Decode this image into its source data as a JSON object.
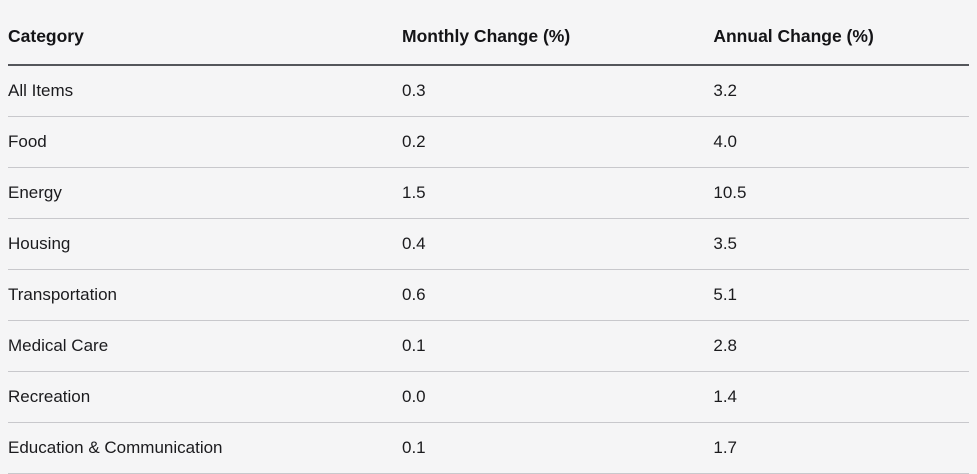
{
  "page": {
    "background_color": "#f5f5f6",
    "header_rule_color": "#54565b",
    "row_rule_color": "#c8c8cc",
    "text_color": "#1b1b1e"
  },
  "table": {
    "columns": [
      "Category",
      "Monthly Change (%)",
      "Annual Change (%)"
    ],
    "rows": [
      {
        "category": "All Items",
        "monthly": "0.3",
        "annual": "3.2"
      },
      {
        "category": "Food",
        "monthly": "0.2",
        "annual": "4.0"
      },
      {
        "category": "Energy",
        "monthly": "1.5",
        "annual": "10.5"
      },
      {
        "category": "Housing",
        "monthly": "0.4",
        "annual": "3.5"
      },
      {
        "category": "Transportation",
        "monthly": "0.6",
        "annual": "5.1"
      },
      {
        "category": "Medical Care",
        "monthly": "0.1",
        "annual": "2.8"
      },
      {
        "category": "Recreation",
        "monthly": "0.0",
        "annual": "1.4"
      },
      {
        "category": "Education & Communication",
        "monthly": "0.1",
        "annual": "1.7"
      }
    ]
  },
  "chart_data": {
    "type": "table",
    "title": "",
    "columns": [
      "Category",
      "Monthly Change (%)",
      "Annual Change (%)"
    ],
    "rows": [
      [
        "All Items",
        0.3,
        3.2
      ],
      [
        "Food",
        0.2,
        4.0
      ],
      [
        "Energy",
        1.5,
        10.5
      ],
      [
        "Housing",
        0.4,
        3.5
      ],
      [
        "Transportation",
        0.6,
        5.1
      ],
      [
        "Medical Care",
        0.1,
        2.8
      ],
      [
        "Recreation",
        0.0,
        1.4
      ],
      [
        "Education & Communication",
        0.1,
        1.7
      ]
    ]
  }
}
